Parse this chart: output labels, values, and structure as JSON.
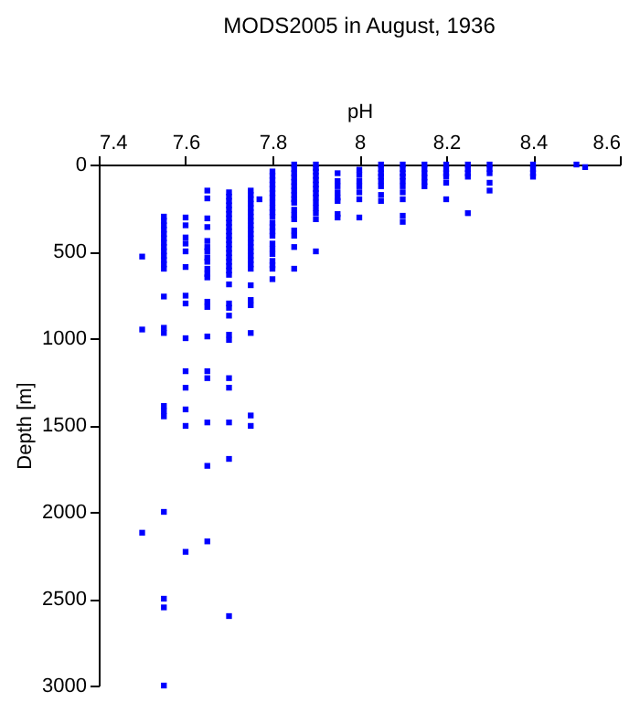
{
  "chart_data": {
    "type": "scatter",
    "title": "MODS2005 in August, 1936",
    "xlabel": "pH",
    "ylabel": "Depth [m]",
    "xlim": [
      7.4,
      8.6
    ],
    "xticks": [
      7.4,
      7.6,
      7.8,
      8,
      8.2,
      8.4,
      8.6
    ],
    "ylim": [
      3000,
      0
    ],
    "yticks": [
      0,
      500,
      1000,
      1500,
      2000,
      2500,
      3000
    ],
    "grid": false,
    "marker": "square",
    "series": [
      {
        "color": "#0000ff",
        "x": [
          7.5,
          7.5,
          7.5,
          7.55,
          7.55,
          7.55,
          7.55,
          7.55,
          7.55,
          7.55,
          7.55,
          7.55,
          7.55,
          7.55,
          7.55,
          7.55,
          7.55,
          7.55,
          7.55,
          7.55,
          7.55,
          7.55,
          7.55,
          7.55,
          7.55,
          7.55,
          7.6,
          7.6,
          7.6,
          7.6,
          7.6,
          7.6,
          7.6,
          7.6,
          7.6,
          7.6,
          7.6,
          7.6,
          7.6,
          7.6,
          7.65,
          7.65,
          7.65,
          7.65,
          7.65,
          7.65,
          7.65,
          7.65,
          7.65,
          7.65,
          7.65,
          7.65,
          7.65,
          7.65,
          7.65,
          7.65,
          7.65,
          7.65,
          7.65,
          7.65,
          7.7,
          7.7,
          7.7,
          7.7,
          7.7,
          7.7,
          7.7,
          7.7,
          7.7,
          7.7,
          7.7,
          7.7,
          7.7,
          7.7,
          7.7,
          7.7,
          7.7,
          7.7,
          7.7,
          7.7,
          7.7,
          7.7,
          7.7,
          7.7,
          7.7,
          7.7,
          7.7,
          7.7,
          7.7,
          7.7,
          7.7,
          7.75,
          7.75,
          7.75,
          7.75,
          7.75,
          7.75,
          7.75,
          7.75,
          7.75,
          7.75,
          7.75,
          7.75,
          7.75,
          7.75,
          7.75,
          7.75,
          7.75,
          7.75,
          7.75,
          7.75,
          7.75,
          7.75,
          7.75,
          7.75,
          7.75,
          7.77,
          7.8,
          7.8,
          7.8,
          7.8,
          7.8,
          7.8,
          7.8,
          7.8,
          7.8,
          7.8,
          7.8,
          7.8,
          7.8,
          7.8,
          7.8,
          7.8,
          7.8,
          7.8,
          7.8,
          7.8,
          7.8,
          7.8,
          7.85,
          7.85,
          7.85,
          7.85,
          7.85,
          7.85,
          7.85,
          7.85,
          7.85,
          7.85,
          7.85,
          7.85,
          7.85,
          7.85,
          7.85,
          7.85,
          7.85,
          7.9,
          7.9,
          7.9,
          7.9,
          7.9,
          7.9,
          7.9,
          7.9,
          7.9,
          7.9,
          7.9,
          7.9,
          7.9,
          7.9,
          7.95,
          7.95,
          7.95,
          7.95,
          7.95,
          7.95,
          7.95,
          7.95,
          8,
          8,
          8,
          8,
          8,
          8,
          8,
          8.05,
          8.05,
          8.05,
          8.05,
          8.05,
          8.05,
          8.05,
          8.05,
          8.1,
          8.1,
          8.1,
          8.1,
          8.1,
          8.1,
          8.1,
          8.1,
          8.1,
          8.1,
          8.15,
          8.15,
          8.15,
          8.15,
          8.15,
          8.15,
          8.2,
          8.2,
          8.2,
          8.2,
          8.2,
          8.2,
          8.25,
          8.25,
          8.25,
          8.25,
          8.25,
          8.3,
          8.3,
          8.3,
          8.3,
          8.3,
          8.4,
          8.4,
          8.4,
          8.4,
          8.5,
          8.52
        ],
        "values": [
          530,
          950,
          2120,
          300,
          325,
          350,
          375,
          400,
          425,
          450,
          475,
          500,
          525,
          550,
          575,
          600,
          760,
          940,
          970,
          1390,
          1420,
          1450,
          2000,
          2500,
          2550,
          3000,
          305,
          350,
          420,
          455,
          500,
          590,
          755,
          800,
          1000,
          1190,
          1285,
          1410,
          1505,
          2230,
          150,
          195,
          310,
          360,
          440,
          475,
          500,
          535,
          560,
          600,
          630,
          650,
          790,
          820,
          990,
          1190,
          1230,
          1485,
          1735,
          2170,
          160,
          185,
          210,
          235,
          260,
          285,
          310,
          335,
          360,
          385,
          410,
          435,
          460,
          485,
          510,
          535,
          560,
          585,
          610,
          635,
          690,
          800,
          825,
          870,
          980,
          1010,
          1230,
          1285,
          1485,
          1695,
          2600,
          150,
          175,
          200,
          225,
          250,
          275,
          300,
          325,
          350,
          375,
          400,
          425,
          450,
          475,
          500,
          525,
          550,
          575,
          600,
          695,
          780,
          810,
          970,
          1445,
          1505,
          200,
          40,
          65,
          90,
          115,
          140,
          165,
          190,
          220,
          250,
          275,
          300,
          335,
          360,
          385,
          410,
          455,
          485,
          515,
          555,
          580,
          600,
          660,
          0,
          25,
          50,
          75,
          100,
          125,
          150,
          175,
          200,
          220,
          260,
          290,
          315,
          380,
          410,
          475,
          600,
          0,
          20,
          40,
          65,
          90,
          115,
          140,
          165,
          190,
          220,
          250,
          280,
          315,
          500,
          50,
          95,
          125,
          160,
          190,
          210,
          285,
          305,
          30,
          60,
          95,
          125,
          160,
          200,
          305,
          0,
          25,
          50,
          70,
          95,
          125,
          175,
          210,
          0,
          25,
          50,
          70,
          95,
          125,
          160,
          200,
          295,
          330,
          0,
          25,
          50,
          75,
          100,
          125,
          0,
          25,
          50,
          70,
          105,
          200,
          0,
          25,
          50,
          70,
          280,
          0,
          25,
          50,
          105,
          150,
          0,
          25,
          50,
          70,
          0,
          15
        ]
      }
    ]
  }
}
